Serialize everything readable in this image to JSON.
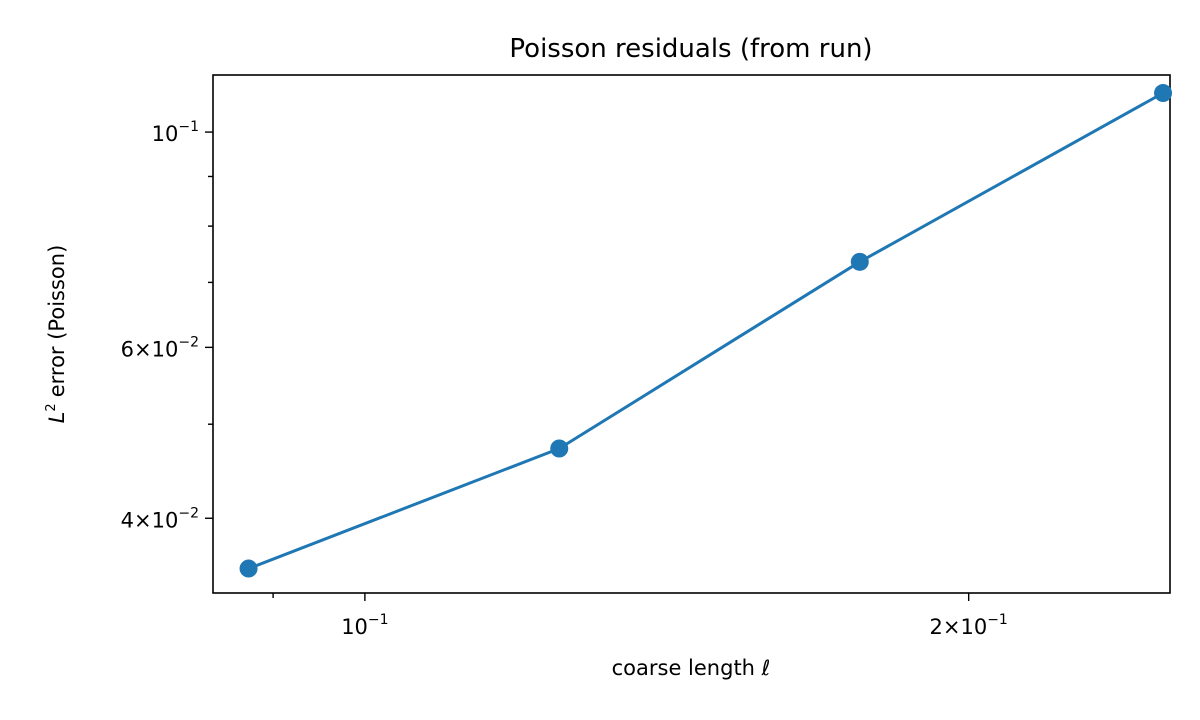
{
  "chart_data": {
    "type": "line",
    "title": "Poisson residuals (from run)",
    "xlabel": "coarse length ℓ",
    "ylabel": "error (Poisson)",
    "ylabel_symbol": "L",
    "ylabel_exponent": "2",
    "xscale": "log",
    "yscale": "log",
    "xlim": [
      0.084,
      0.252
    ],
    "ylim": [
      0.0335,
      0.1145
    ],
    "grid": false,
    "color": "#1f77b4",
    "series": [
      {
        "x": [
          0.0875,
          0.125,
          0.1765,
          0.25
        ],
        "y": [
          0.0355,
          0.0472,
          0.0735,
          0.1097
        ]
      }
    ],
    "xticks": [
      {
        "value": 0.1,
        "coef": "",
        "base": "10",
        "exp": "−1"
      },
      {
        "value": 0.2,
        "coef": "2",
        "base": "10",
        "exp": "−1"
      }
    ],
    "yticks": [
      {
        "value": 0.1,
        "coef": "",
        "base": "10",
        "exp": "−1"
      },
      {
        "value": 0.06,
        "coef": "6",
        "base": "10",
        "exp": "−2"
      },
      {
        "value": 0.04,
        "coef": "4",
        "base": "10",
        "exp": "−2"
      }
    ],
    "x_minor_ticks": [
      0.09
    ],
    "y_minor_ticks": [
      0.05,
      0.07,
      0.08,
      0.09
    ]
  }
}
